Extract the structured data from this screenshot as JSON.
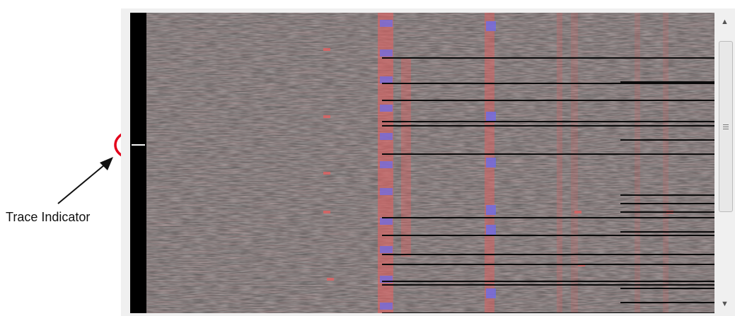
{
  "annotation": {
    "label": "Trace Indicator",
    "circle_color": "#e3001b",
    "arrow_color": "#111111"
  },
  "waterfall": {
    "background": "#6b6767",
    "signal_color": "#e06060",
    "peak_color": "#6a6cf0"
  },
  "trace_indicator": {
    "strip_color": "#000000",
    "mark_color": "#f5f5f5"
  },
  "scrollbar": {
    "up_icon": "triangle-up",
    "down_icon": "triangle-down",
    "thumb_grip_icon": "grip-lines"
  }
}
